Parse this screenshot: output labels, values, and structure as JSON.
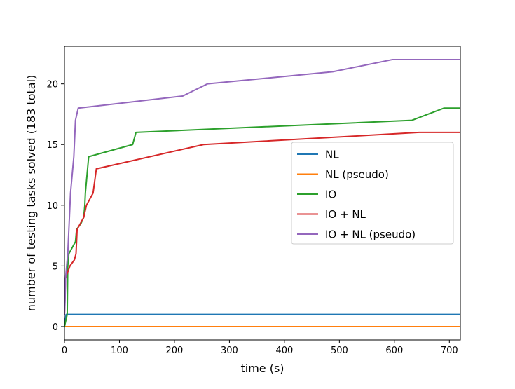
{
  "chart_data": {
    "type": "line",
    "title": "",
    "xlabel": "time (s)",
    "ylabel": "number of testing tasks solved (183 total)",
    "xlim": [
      0,
      720
    ],
    "ylim": [
      -1.1,
      23.1
    ],
    "xticks": [
      0,
      100,
      200,
      300,
      400,
      500,
      600,
      700
    ],
    "yticks": [
      0,
      5,
      10,
      15,
      20
    ],
    "grid": false,
    "legend_position": "center-right",
    "series": [
      {
        "name": "NL",
        "color": "#1f77b4",
        "points": [
          [
            0,
            0
          ],
          [
            3,
            1
          ],
          [
            720,
            1
          ]
        ]
      },
      {
        "name": "NL (pseudo)",
        "color": "#ff7f0e",
        "points": [
          [
            0,
            0
          ],
          [
            720,
            0
          ]
        ]
      },
      {
        "name": "IO",
        "color": "#2ca02c",
        "points": [
          [
            0,
            0
          ],
          [
            5,
            1
          ],
          [
            6,
            5
          ],
          [
            8,
            6
          ],
          [
            20,
            7
          ],
          [
            22,
            8
          ],
          [
            30,
            8.5
          ],
          [
            35,
            9
          ],
          [
            37,
            10
          ],
          [
            38,
            11
          ],
          [
            40,
            12
          ],
          [
            42,
            13
          ],
          [
            44,
            14
          ],
          [
            124,
            15
          ],
          [
            130,
            16
          ],
          [
            632,
            17
          ],
          [
            690,
            18
          ],
          [
            720,
            18
          ]
        ]
      },
      {
        "name": "IO + NL",
        "color": "#d62728",
        "points": [
          [
            0,
            1
          ],
          [
            2,
            4
          ],
          [
            10,
            5
          ],
          [
            18,
            5.5
          ],
          [
            21,
            6
          ],
          [
            23,
            8
          ],
          [
            35,
            9
          ],
          [
            40,
            10
          ],
          [
            52,
            11
          ],
          [
            55,
            12
          ],
          [
            58,
            13
          ],
          [
            253,
            15
          ],
          [
            645,
            16
          ],
          [
            720,
            16
          ]
        ]
      },
      {
        "name": "IO + NL (pseudo)",
        "color": "#9467bd",
        "points": [
          [
            0,
            1
          ],
          [
            1,
            2
          ],
          [
            2,
            4
          ],
          [
            4,
            5
          ],
          [
            6,
            6
          ],
          [
            8,
            8
          ],
          [
            9,
            9
          ],
          [
            10,
            10
          ],
          [
            11,
            11
          ],
          [
            13,
            12
          ],
          [
            15,
            13
          ],
          [
            17,
            14
          ],
          [
            18,
            15
          ],
          [
            19,
            16
          ],
          [
            20,
            17
          ],
          [
            25,
            18
          ],
          [
            215,
            19
          ],
          [
            260,
            20
          ],
          [
            488,
            21
          ],
          [
            596,
            22
          ],
          [
            720,
            22
          ]
        ]
      }
    ]
  }
}
